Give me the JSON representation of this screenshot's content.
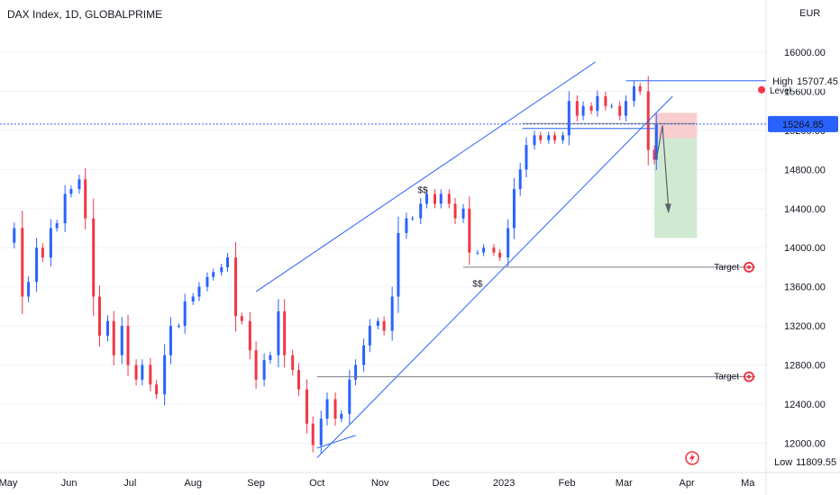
{
  "chart_data": {
    "type": "candlestick",
    "title": "DAX Index, 1D, GLOBALPRIME",
    "currency": "EUR",
    "x_labels": [
      "May",
      "Jun",
      "Jul",
      "Aug",
      "Sep",
      "Oct",
      "Nov",
      "Dec",
      "2023",
      "Feb",
      "Mar",
      "Apr",
      "Ma"
    ],
    "y_ticks": [
      16000,
      15600,
      15200,
      14800,
      14400,
      14000,
      13600,
      13200,
      12800,
      12400,
      12000
    ],
    "y_tick_labels": [
      "16000.00",
      "15600.00",
      "15200.00",
      "14800.00",
      "14400.00",
      "14000.00",
      "13600.00",
      "13200.00",
      "12800.00",
      "12400.00",
      "12000.00"
    ],
    "ylim": [
      11700,
      16350
    ],
    "price_series": [
      [
        "2022-05-02",
        14050
      ],
      [
        "2022-05-05",
        14200
      ],
      [
        "2022-05-09",
        13500
      ],
      [
        "2022-05-12",
        13650
      ],
      [
        "2022-05-16",
        14000
      ],
      [
        "2022-05-19",
        13900
      ],
      [
        "2022-05-23",
        14200
      ],
      [
        "2022-05-26",
        14250
      ],
      [
        "2022-05-30",
        14550
      ],
      [
        "2022-06-02",
        14600
      ],
      [
        "2022-06-06",
        14700
      ],
      [
        "2022-06-09",
        14300
      ],
      [
        "2022-06-13",
        13500
      ],
      [
        "2022-06-16",
        13100
      ],
      [
        "2022-06-20",
        13250
      ],
      [
        "2022-06-23",
        12900
      ],
      [
        "2022-06-27",
        13200
      ],
      [
        "2022-06-30",
        12800
      ],
      [
        "2022-07-04",
        12650
      ],
      [
        "2022-07-07",
        12800
      ],
      [
        "2022-07-11",
        12600
      ],
      [
        "2022-07-14",
        12500
      ],
      [
        "2022-07-18",
        12900
      ],
      [
        "2022-07-21",
        13200
      ],
      [
        "2022-07-25",
        13200
      ],
      [
        "2022-07-28",
        13450
      ],
      [
        "2022-08-01",
        13500
      ],
      [
        "2022-08-04",
        13600
      ],
      [
        "2022-08-08",
        13700
      ],
      [
        "2022-08-11",
        13750
      ],
      [
        "2022-08-15",
        13800
      ],
      [
        "2022-08-18",
        13900
      ],
      [
        "2022-08-22",
        13300
      ],
      [
        "2022-08-25",
        13250
      ],
      [
        "2022-08-29",
        12950
      ],
      [
        "2022-09-01",
        12650
      ],
      [
        "2022-09-05",
        12850
      ],
      [
        "2022-09-08",
        12900
      ],
      [
        "2022-09-12",
        13350
      ],
      [
        "2022-09-15",
        12900
      ],
      [
        "2022-09-19",
        12750
      ],
      [
        "2022-09-22",
        12550
      ],
      [
        "2022-09-26",
        12200
      ],
      [
        "2022-09-29",
        11980
      ],
      [
        "2022-10-03",
        12250
      ],
      [
        "2022-10-06",
        12450
      ],
      [
        "2022-10-10",
        12250
      ],
      [
        "2022-10-13",
        12300
      ],
      [
        "2022-10-17",
        12650
      ],
      [
        "2022-10-20",
        12800
      ],
      [
        "2022-10-24",
        13000
      ],
      [
        "2022-10-27",
        13200
      ],
      [
        "2022-10-31",
        13250
      ],
      [
        "2022-11-03",
        13150
      ],
      [
        "2022-11-07",
        13500
      ],
      [
        "2022-11-10",
        14150
      ],
      [
        "2022-11-14",
        14300
      ],
      [
        "2022-11-17",
        14300
      ],
      [
        "2022-11-21",
        14450
      ],
      [
        "2022-11-24",
        14550
      ],
      [
        "2022-11-28",
        14450
      ],
      [
        "2022-12-01",
        14550
      ],
      [
        "2022-12-05",
        14450
      ],
      [
        "2022-12-08",
        14300
      ],
      [
        "2022-12-12",
        14400
      ],
      [
        "2022-12-15",
        13950
      ],
      [
        "2022-12-19",
        13950
      ],
      [
        "2022-12-22",
        14000
      ],
      [
        "2022-12-27",
        13950
      ],
      [
        "2022-12-30",
        13900
      ],
      [
        "2023-01-03",
        14200
      ],
      [
        "2023-01-06",
        14600
      ],
      [
        "2023-01-09",
        14800
      ],
      [
        "2023-01-12",
        15050
      ],
      [
        "2023-01-16",
        15150
      ],
      [
        "2023-01-19",
        15100
      ],
      [
        "2023-01-23",
        15150
      ],
      [
        "2023-01-26",
        15100
      ],
      [
        "2023-01-30",
        15150
      ],
      [
        "2023-02-02",
        15500
      ],
      [
        "2023-02-06",
        15350
      ],
      [
        "2023-02-09",
        15450
      ],
      [
        "2023-02-13",
        15400
      ],
      [
        "2023-02-16",
        15550
      ],
      [
        "2023-02-20",
        15450
      ],
      [
        "2023-02-23",
        15450
      ],
      [
        "2023-02-27",
        15350
      ],
      [
        "2023-03-02",
        15500
      ],
      [
        "2023-03-06",
        15650
      ],
      [
        "2023-03-09",
        15600
      ],
      [
        "2023-03-13",
        15000
      ],
      [
        "2023-03-16",
        14900
      ],
      [
        "2023-03-17",
        15264.85
      ]
    ],
    "price_labels": {
      "high_label": "High",
      "high_value": "15707.45",
      "level_label": "Level",
      "current_value": "15264.85",
      "low_label": "Low",
      "low_value": "11809.55",
      "target_label": "Target",
      "ss_label": "$$"
    },
    "levels": {
      "high": 15707.45,
      "current": 15264.85,
      "low": 11809.55,
      "target_1": 13800,
      "target_2": 12680,
      "range_top": 15270,
      "range_bottom": 15220,
      "short_stop": 15380,
      "short_entry": 15120,
      "short_target": 14100
    },
    "colors": {
      "up": "#2962ff",
      "down": "#f23645",
      "trendline": "#2962ff",
      "current_line": "#2962ff",
      "stop_zone": "#f7c5c9",
      "target_zone": "#c8e6c9",
      "level_line": "#787b86",
      "axis_text": "#131722"
    }
  }
}
